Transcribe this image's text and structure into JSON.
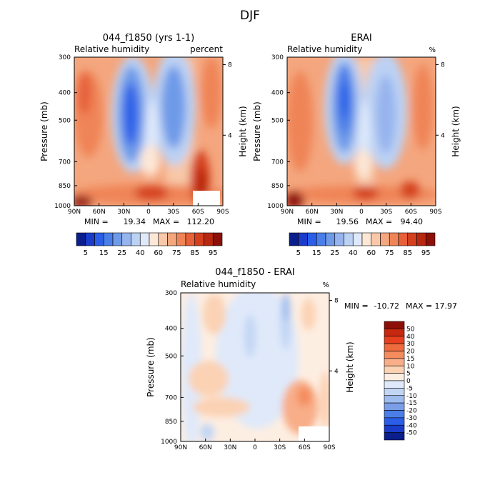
{
  "figure": {
    "title": "DJF"
  },
  "chart_data": [
    {
      "type": "heatmap",
      "title": "044_f1850 (yrs 1-1)",
      "left_label": "Relative humidity",
      "right_label": "percent",
      "ylabel": "Pressure (mb)",
      "y2label": "Height (km)",
      "xticks": [
        "90N",
        "60N",
        "30N",
        "0",
        "30S",
        "60S",
        "90S"
      ],
      "yticks": [
        "300",
        "400",
        "500",
        "700",
        "850",
        "1000"
      ],
      "y2ticks": [
        "8",
        "4"
      ],
      "stats": {
        "min_label": "MIN =",
        "min": "19.34",
        "max_label": "MAX =",
        "max": "112.20"
      },
      "colorbar": {
        "orientation": "horizontal",
        "labels": [
          "5",
          "15",
          "25",
          "40",
          "60",
          "75",
          "85",
          "95"
        ]
      }
    },
    {
      "type": "heatmap",
      "title": "ERAI",
      "left_label": "Relative humidity",
      "right_label": "%",
      "ylabel": "Pressure (mb)",
      "y2label": "Height (km)",
      "xticks": [
        "90N",
        "60N",
        "30N",
        "0",
        "30S",
        "60S",
        "90S"
      ],
      "yticks": [
        "300",
        "400",
        "500",
        "700",
        "850",
        "1000"
      ],
      "y2ticks": [
        "8",
        "4"
      ],
      "stats": {
        "min_label": "MIN =",
        "min": "19.56",
        "max_label": "MAX =",
        "max": "94.40"
      },
      "colorbar": {
        "orientation": "horizontal",
        "labels": [
          "5",
          "15",
          "25",
          "40",
          "60",
          "75",
          "85",
          "95"
        ]
      }
    },
    {
      "type": "heatmap",
      "title": "044_f1850 - ERAI",
      "left_label": "Relative humidity",
      "right_label": "%",
      "ylabel": "Pressure (mb)",
      "y2label": "Height (km)",
      "xticks": [
        "90N",
        "60N",
        "30N",
        "0",
        "30S",
        "60S",
        "90S"
      ],
      "yticks": [
        "300",
        "400",
        "500",
        "700",
        "850",
        "1000"
      ],
      "y2ticks": [
        "8",
        "4"
      ],
      "stats": {
        "min_label": "MIN =",
        "min": "-10.72",
        "max_label": "MAX =",
        "max": "17.97"
      },
      "colorbar": {
        "orientation": "vertical",
        "labels": [
          "50",
          "40",
          "30",
          "20",
          "15",
          "10",
          "5",
          "0",
          "-5",
          "-10",
          "-15",
          "-20",
          "-30",
          "-40",
          "-50"
        ]
      }
    }
  ],
  "palettes": {
    "absolute": [
      "#0a1e8c",
      "#1a3cc8",
      "#2a5ee8",
      "#4a7ee8",
      "#6e9ae8",
      "#96b4ee",
      "#bcd2f4",
      "#dfe9fa",
      "#fde7d6",
      "#f8c8a8",
      "#f4a67e",
      "#ef8456",
      "#e6603a",
      "#d4401e",
      "#b82810",
      "#8c1008"
    ],
    "difference": [
      "#8c1008",
      "#c82810",
      "#e6401e",
      "#ef6a3c",
      "#f48c5e",
      "#f8ae88",
      "#fbd2b4",
      "#fdeee2",
      "#dfe9fa",
      "#c2d6f4",
      "#9ebcee",
      "#7a9ee8",
      "#4a7ee8",
      "#2a5ee8",
      "#1a3cc8",
      "#0a1e8c"
    ]
  }
}
